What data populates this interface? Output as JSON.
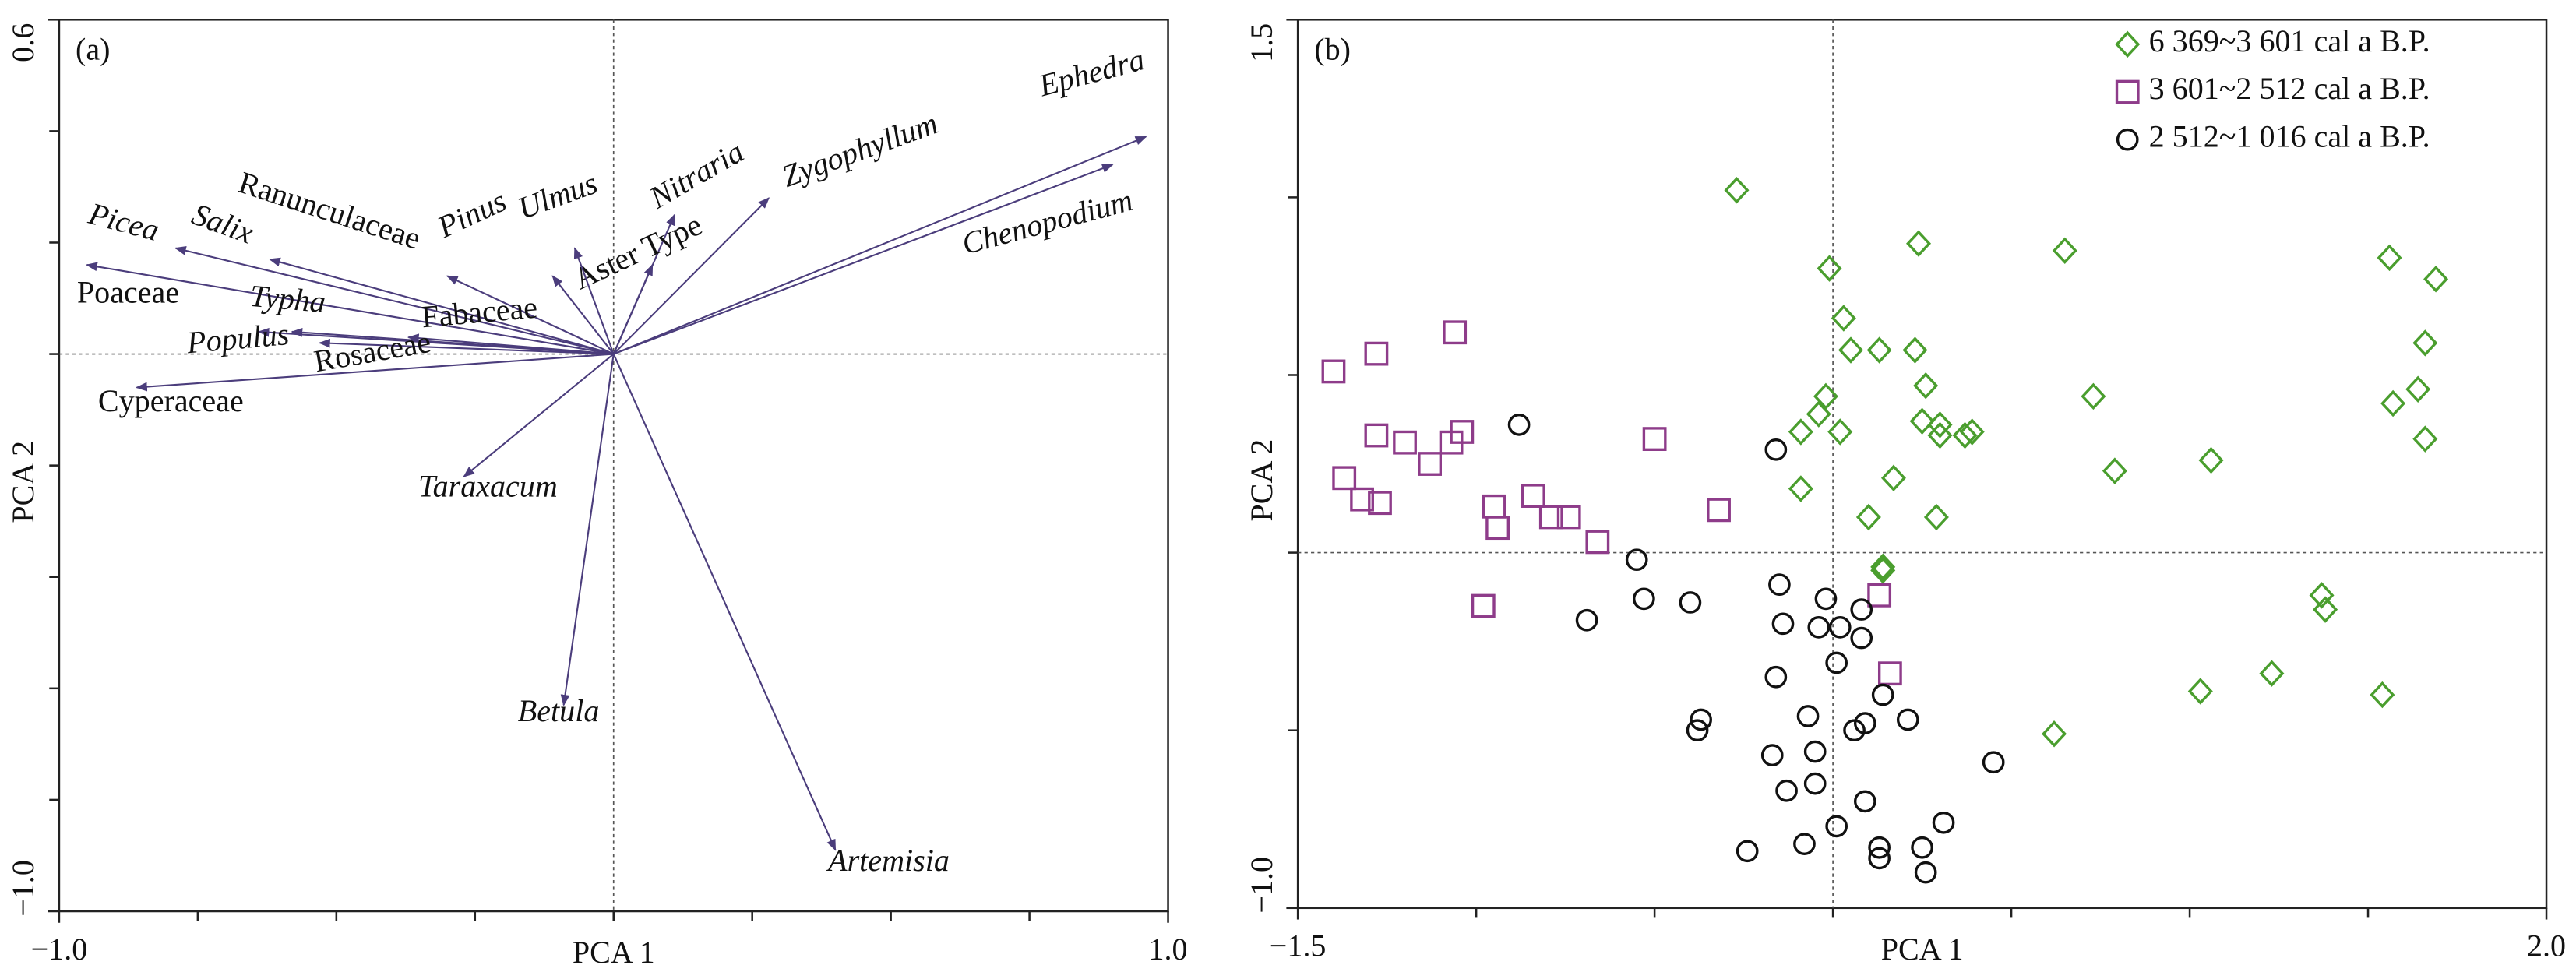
{
  "chart_data": [
    {
      "type": "biplot",
      "title": "(a)",
      "xlabel": "PCA 1",
      "ylabel": "PCA 2",
      "color": "#4b3d7c",
      "categories": [
        "Ephedra",
        "Chenopodium",
        "Zygophyllum",
        "Nitraria",
        "Aster Type",
        "Ulmus",
        "Pinus",
        "Ranunculaceae",
        "Salix",
        "Picea",
        "Poaceae",
        "Typha",
        "Populus",
        "Fabaceae",
        "Rosaceae",
        "Cyperaceae",
        "Taraxacum",
        "Betula",
        "Artemisia"
      ],
      "x": [
        0.96,
        0.9,
        0.28,
        0.11,
        0.07,
        -0.07,
        -0.11,
        -0.3,
        -0.62,
        -0.79,
        -0.95,
        -0.58,
        -0.64,
        -0.37,
        -0.53,
        -0.86,
        -0.27,
        -0.09,
        0.4
      ],
      "values": [
        0.39,
        0.34,
        0.28,
        0.25,
        0.16,
        0.19,
        0.14,
        0.14,
        0.17,
        0.19,
        0.16,
        0.04,
        0.04,
        0.03,
        0.02,
        -0.06,
        -0.22,
        -0.63,
        -0.89
      ],
      "xlim": [
        -1,
        1
      ],
      "ylim": [
        -1,
        0.6
      ],
      "xticks": [
        {
          "value": -1,
          "label": "−1.0"
        },
        {
          "value": 1,
          "label": "1.0"
        }
      ],
      "yticks": [
        0.6,
        {
          "value": -1,
          "label": "−1.0"
        }
      ],
      "xminorticks": [
        -0.75,
        -0.5,
        -0.25,
        0,
        0.25,
        0.5,
        0.75
      ],
      "yminorticks": [
        0.4,
        0.2,
        0,
        -0.2,
        -0.4,
        -0.6,
        -0.8
      ]
    },
    {
      "type": "scatter",
      "title": "(b)",
      "xlabel": "PCA 1",
      "ylabel": "PCA 2",
      "legend": "upper right",
      "xlim": [
        -1.5,
        2
      ],
      "ylim": [
        -1,
        1.5
      ],
      "xticks": [
        {
          "value": -1.5,
          "label": "−1.5"
        },
        {
          "value": 2,
          "label": "2.0"
        }
      ],
      "yticks": [
        1.5,
        {
          "value": -1,
          "label": "−1.0"
        }
      ],
      "xminorticks": [
        -1,
        -0.5,
        0,
        0.5,
        1,
        1.5
      ],
      "yminorticks": [
        1,
        0.5,
        0,
        -0.5
      ],
      "series": [
        {
          "name": "6 369~3 601 cal a B.P.",
          "color": "#4a9e2e",
          "marker": "diamond",
          "x": [
            -0.27,
            -0.01,
            0.24,
            0.65,
            1.56,
            1.69,
            0.03,
            0.05,
            0.13,
            0.23,
            1.66,
            0.26,
            -0.02,
            -0.04,
            -0.09,
            0.02,
            0.25,
            0.3,
            0.3,
            0.37,
            0.39,
            0.73,
            1.64,
            1.57,
            1.66,
            -0.09,
            0.17,
            0.79,
            1.06,
            0.1,
            0.29,
            0.14,
            0.14,
            1.37,
            1.38,
            1.23,
            1.03,
            1.54,
            0.62
          ],
          "values": [
            1.02,
            0.8,
            0.87,
            0.85,
            0.83,
            0.77,
            0.66,
            0.57,
            0.57,
            0.57,
            0.59,
            0.47,
            0.44,
            0.39,
            0.34,
            0.34,
            0.37,
            0.36,
            0.33,
            0.33,
            0.34,
            0.44,
            0.46,
            0.42,
            0.32,
            0.18,
            0.21,
            0.23,
            0.26,
            0.1,
            0.1,
            -0.04,
            -0.05,
            -0.12,
            -0.16,
            -0.34,
            -0.39,
            -0.4,
            -0.51
          ]
        },
        {
          "name": "3 601~2 512 cal a B.P.",
          "color": "#8e3c8a",
          "marker": "square",
          "x": [
            -1.4,
            -1.28,
            -1.06,
            -1.28,
            -1.2,
            -1.07,
            -1.04,
            -1.13,
            -0.5,
            -1.37,
            -1.32,
            -1.27,
            -0.95,
            -0.84,
            -0.94,
            -0.79,
            -0.74,
            -0.66,
            -0.32,
            -0.98,
            0.13,
            0.16
          ],
          "values": [
            0.51,
            0.56,
            0.62,
            0.33,
            0.31,
            0.31,
            0.34,
            0.25,
            0.32,
            0.21,
            0.15,
            0.14,
            0.13,
            0.16,
            0.07,
            0.1,
            0.1,
            0.03,
            0.12,
            -0.15,
            -0.12,
            -0.34
          ]
        },
        {
          "name": "2 512~1 016 cal a B.P.",
          "color": "#111111",
          "marker": "circle",
          "x": [
            -0.88,
            -0.16,
            -0.55,
            -0.15,
            -0.02,
            -0.53,
            -0.4,
            0.08,
            -0.69,
            -0.04,
            -0.14,
            0.02,
            0.01,
            0.08,
            -0.16,
            0.14,
            -0.37,
            -0.38,
            -0.07,
            0.09,
            0.21,
            0.06,
            0.45,
            -0.17,
            -0.05,
            -0.13,
            -0.05,
            0.09,
            -0.24,
            0.01,
            0.31,
            -0.08,
            0.13,
            0.25,
            0.13,
            0.26
          ],
          "values": [
            0.36,
            0.29,
            -0.02,
            -0.09,
            -0.13,
            -0.13,
            -0.14,
            -0.16,
            -0.19,
            -0.21,
            -0.2,
            -0.21,
            -0.31,
            -0.24,
            -0.35,
            -0.4,
            -0.47,
            -0.5,
            -0.46,
            -0.48,
            -0.47,
            -0.5,
            -0.59,
            -0.57,
            -0.56,
            -0.67,
            -0.65,
            -0.7,
            -0.84,
            -0.77,
            -0.76,
            -0.82,
            -0.83,
            -0.83,
            -0.86,
            -0.9
          ]
        }
      ]
    }
  ]
}
